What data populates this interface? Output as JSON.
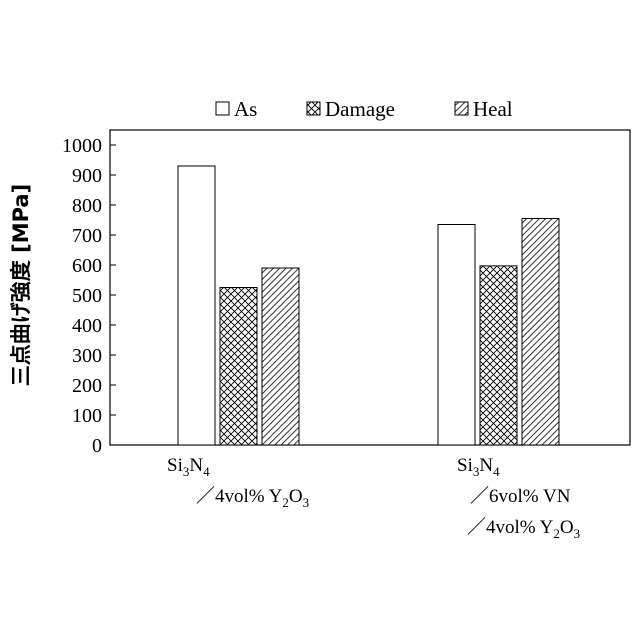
{
  "chart_data": {
    "type": "bar",
    "ylabel": "三点曲げ強度 [MPa]",
    "ylim": [
      0,
      1000
    ],
    "yticks": [
      0,
      100,
      200,
      300,
      400,
      500,
      600,
      700,
      800,
      900,
      1000
    ],
    "legend_position": "top",
    "categories": [
      {
        "lines": [
          [
            {
              "t": "Si"
            },
            {
              "t": "3",
              "sub": true
            },
            {
              "t": "N"
            },
            {
              "t": "4",
              "sub": true
            }
          ],
          [
            {
              "t": "／4vol% Y"
            },
            {
              "t": "2",
              "sub": true
            },
            {
              "t": "O"
            },
            {
              "t": "3",
              "sub": true
            }
          ]
        ]
      },
      {
        "lines": [
          [
            {
              "t": "Si"
            },
            {
              "t": "3",
              "sub": true
            },
            {
              "t": "N"
            },
            {
              "t": "4",
              "sub": true
            }
          ],
          [
            {
              "t": "／6vol% VN"
            }
          ],
          [
            {
              "t": "／4vol% Y"
            },
            {
              "t": "2",
              "sub": true
            },
            {
              "t": "O"
            },
            {
              "t": "3",
              "sub": true
            }
          ]
        ]
      }
    ],
    "series": [
      {
        "name": "As",
        "fill": "none",
        "values": [
          930,
          735
        ]
      },
      {
        "name": "Damage",
        "fill": "crosshatch",
        "values": [
          525,
          597
        ]
      },
      {
        "name": "Heal",
        "fill": "diagonal",
        "values": [
          590,
          755
        ]
      }
    ]
  }
}
